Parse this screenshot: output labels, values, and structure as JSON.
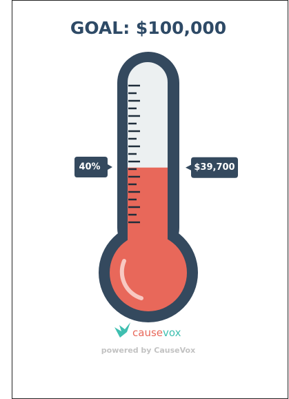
{
  "chart_data": {
    "type": "thermometer",
    "title": "GOAL: $100,000",
    "values": [
      39700
    ],
    "value_labels": [
      "$39,700"
    ],
    "percent_values": [
      40
    ],
    "percent_labels": [
      "40%"
    ],
    "ylim": [
      0,
      100000
    ],
    "color": "#e8685a"
  },
  "branding": {
    "logo_part1": "cause",
    "logo_part2": "vox",
    "tagline": "powered by CauseVox"
  }
}
